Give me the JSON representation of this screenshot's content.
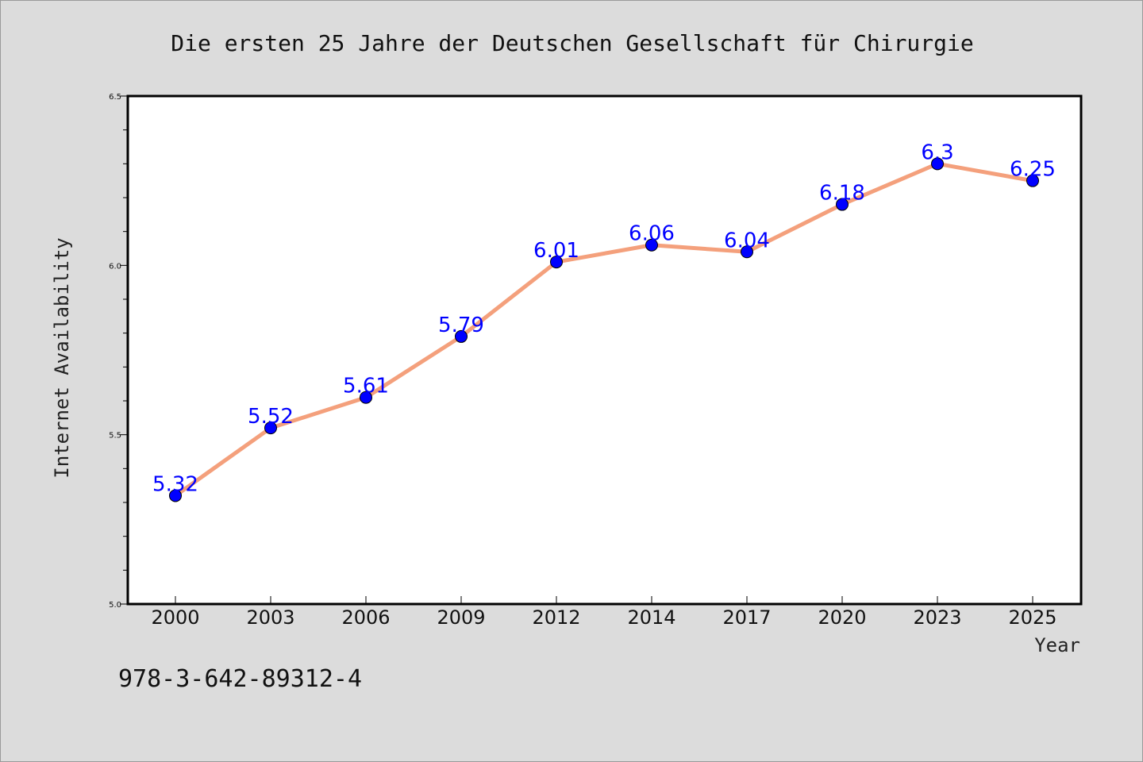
{
  "chart_data": {
    "type": "line",
    "title": "Die ersten 25 Jahre der Deutschen Gesellschaft für Chirurgie",
    "xlabel": "Year",
    "ylabel": "Internet Availability",
    "categories": [
      "2000",
      "2003",
      "2006",
      "2009",
      "2012",
      "2014",
      "2017",
      "2020",
      "2023",
      "2025"
    ],
    "series": [
      {
        "values": [
          5.32,
          5.52,
          5.61,
          5.79,
          6.01,
          6.06,
          6.04,
          6.18,
          6.3,
          6.25
        ],
        "labels": [
          "5.32",
          "5.52",
          "5.61",
          "5.79",
          "6.01",
          "6.06",
          "6.04",
          "6.18",
          "6.3",
          "6.25"
        ],
        "line_color": "#f4a07c",
        "marker_color": "#0000ff"
      }
    ],
    "ylim": [
      5.0,
      6.5
    ],
    "yticks": [
      "5.0",
      "5.5",
      "6.0",
      "6.5"
    ],
    "yticks_values": [
      5.0,
      5.5,
      6.0,
      6.5
    ],
    "grid": false,
    "legend": "none"
  },
  "footer": {
    "isbn": "978-3-642-89312-4"
  },
  "colors": {
    "background": "#dcdcdc",
    "plot_background": "#ffffff",
    "axis": "#000000",
    "label_color": "#0000ff"
  }
}
